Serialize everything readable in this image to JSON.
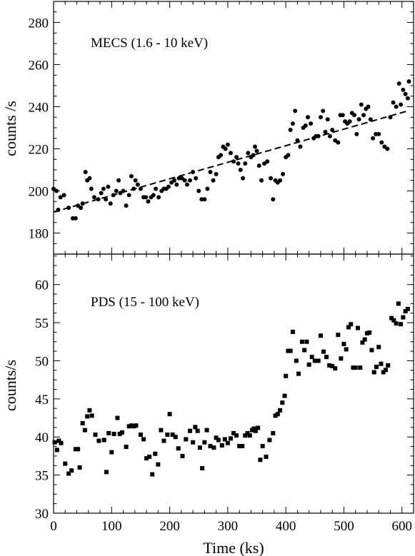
{
  "chart_data": [
    {
      "type": "scatter",
      "panel_label": "MECS (1.6 - 10 keV)",
      "xlabel": "",
      "ylabel": "counts /s",
      "xlim": [
        0,
        620
      ],
      "ylim": [
        170,
        290
      ],
      "x_ticks": [
        0,
        100,
        200,
        300,
        400,
        500,
        600
      ],
      "y_ticks": [
        180,
        200,
        220,
        240,
        260,
        280
      ],
      "y_tick_labels": [
        "180",
        "200",
        "220",
        "240",
        "260",
        "280"
      ],
      "marker": "circle",
      "series": [
        {
          "points": [
            [
              0,
              201
            ],
            [
              5,
              200
            ],
            [
              8,
              191
            ],
            [
              12,
              197
            ],
            [
              18,
              198
            ],
            [
              26,
              192
            ],
            [
              33,
              187
            ],
            [
              38,
              187
            ],
            [
              42,
              193
            ],
            [
              47,
              192
            ],
            [
              50,
              194
            ],
            [
              55,
              209
            ],
            [
              58,
              205
            ],
            [
              62,
              206
            ],
            [
              65,
              201
            ],
            [
              70,
              197
            ],
            [
              77,
              196
            ],
            [
              82,
              199
            ],
            [
              86,
              201
            ],
            [
              90,
              196
            ],
            [
              94,
              202
            ],
            [
              98,
              194
            ],
            [
              103,
              198
            ],
            [
              108,
              200
            ],
            [
              112,
              205
            ],
            [
              115,
              199
            ],
            [
              120,
              200
            ],
            [
              125,
              193
            ],
            [
              130,
              198
            ],
            [
              134,
              207
            ],
            [
              138,
              201
            ],
            [
              141,
              205
            ],
            [
              145,
              203
            ],
            [
              150,
              201
            ],
            [
              155,
              197
            ],
            [
              159,
              197
            ],
            [
              163,
              195
            ],
            [
              168,
              197
            ],
            [
              172,
              198
            ],
            [
              176,
              201
            ],
            [
              181,
              197
            ],
            [
              186,
              200
            ],
            [
              190,
              201
            ],
            [
              194,
              201
            ],
            [
              198,
              202
            ],
            [
              203,
              204
            ],
            [
              208,
              205
            ],
            [
              212,
              203
            ],
            [
              216,
              206
            ],
            [
              221,
              206
            ],
            [
              226,
              205
            ],
            [
              230,
              203
            ],
            [
              235,
              205
            ],
            [
              240,
              209
            ],
            [
              245,
              206
            ],
            [
              250,
              200
            ],
            [
              255,
              196
            ],
            [
              260,
              196
            ],
            [
              265,
              201
            ],
            [
              270,
              209
            ],
            [
              275,
              205
            ],
            [
              280,
              208
            ],
            [
              284,
              216
            ],
            [
              288,
              217
            ],
            [
              292,
              221
            ],
            [
              296,
              220
            ],
            [
              300,
              222
            ],
            [
              305,
              218
            ],
            [
              310,
              214
            ],
            [
              315,
              216
            ],
            [
              318,
              213
            ],
            [
              322,
              210
            ],
            [
              326,
              206
            ],
            [
              330,
              213
            ],
            [
              335,
              218
            ],
            [
              340,
              216
            ],
            [
              344,
              217
            ],
            [
              347,
              221
            ],
            [
              350,
              219
            ],
            [
              354,
              212
            ],
            [
              358,
              205
            ],
            [
              363,
              213
            ],
            [
              368,
              214
            ],
            [
              374,
              206
            ],
            [
              378,
              196
            ],
            [
              382,
              205
            ],
            [
              386,
              204
            ],
            [
              390,
              205
            ],
            [
              395,
              208
            ],
            [
              400,
              216
            ],
            [
              404,
              217
            ],
            [
              408,
              229
            ],
            [
              412,
              232
            ],
            [
              416,
              238
            ],
            [
              420,
              224
            ],
            [
              425,
              221
            ],
            [
              430,
              230
            ],
            [
              434,
              231
            ],
            [
              438,
              235
            ],
            [
              443,
              232
            ],
            [
              448,
              225
            ],
            [
              452,
              226
            ],
            [
              456,
              226
            ],
            [
              460,
              235
            ],
            [
              464,
              238
            ],
            [
              468,
              228
            ],
            [
              472,
              234
            ],
            [
              476,
              226
            ],
            [
              480,
              229
            ],
            [
              485,
              224
            ],
            [
              490,
              223
            ],
            [
              494,
              236
            ],
            [
              498,
              236
            ],
            [
              502,
              233
            ],
            [
              506,
              232
            ],
            [
              510,
              233
            ],
            [
              514,
              237
            ],
            [
              518,
              236
            ],
            [
              522,
              227
            ],
            [
              526,
              234
            ],
            [
              530,
              241
            ],
            [
              534,
              236
            ],
            [
              538,
              239
            ],
            [
              542,
              240
            ],
            [
              546,
              234
            ],
            [
              550,
              225
            ],
            [
              555,
              227
            ],
            [
              560,
              227
            ],
            [
              565,
              223
            ],
            [
              570,
              221
            ],
            [
              575,
              220
            ],
            [
              580,
              235
            ],
            [
              585,
              242
            ],
            [
              590,
              240
            ],
            [
              595,
              251
            ],
            [
              598,
              241
            ],
            [
              602,
              248
            ],
            [
              606,
              246
            ],
            [
              610,
              244
            ],
            [
              612,
              252
            ]
          ]
        }
      ],
      "fit_line": {
        "style": "dashed",
        "x": [
          0,
          610
        ],
        "y": [
          190,
          238
        ]
      }
    },
    {
      "type": "scatter",
      "panel_label": "PDS (15 - 100 keV)",
      "xlabel": "Time  (ks)",
      "ylabel": "counts/s",
      "xlim": [
        0,
        620
      ],
      "ylim": [
        30,
        64
      ],
      "x_ticks": [
        0,
        100,
        200,
        300,
        400,
        500,
        600
      ],
      "x_tick_labels": [
        "0",
        "100",
        "200",
        "300",
        "400",
        "500",
        "600"
      ],
      "y_ticks": [
        30,
        35,
        40,
        45,
        50,
        55,
        60
      ],
      "y_tick_labels": [
        "30",
        "35",
        "40",
        "45",
        "50",
        "55",
        "60"
      ],
      "marker": "square",
      "series": [
        {
          "points": [
            [
              2,
              39.3
            ],
            [
              6,
              38.3
            ],
            [
              9,
              39.5
            ],
            [
              13,
              39.2
            ],
            [
              20,
              36.5
            ],
            [
              26,
              35.2
            ],
            [
              31,
              35.6
            ],
            [
              38,
              38.4
            ],
            [
              42,
              38.4
            ],
            [
              45,
              36
            ],
            [
              50,
              41.8
            ],
            [
              54,
              40.9
            ],
            [
              58,
              42.7
            ],
            [
              62,
              43.5
            ],
            [
              66,
              42.8
            ],
            [
              72,
              40.3
            ],
            [
              78,
              39.5
            ],
            [
              87,
              39.6
            ],
            [
              91,
              35.4
            ],
            [
              95,
              40.5
            ],
            [
              100,
              38
            ],
            [
              104,
              40.4
            ],
            [
              110,
              42.5
            ],
            [
              114,
              40.4
            ],
            [
              118,
              40.6
            ],
            [
              125,
              38.7
            ],
            [
              130,
              41.4
            ],
            [
              134,
              41.5
            ],
            [
              138,
              41.4
            ],
            [
              142,
              41.5
            ],
            [
              150,
              40.3
            ],
            [
              155,
              39.7
            ],
            [
              160,
              37.2
            ],
            [
              165,
              37.4
            ],
            [
              170,
              35.1
            ],
            [
              175,
              37.8
            ],
            [
              180,
              36.4
            ],
            [
              185,
              40.9
            ],
            [
              190,
              39.5
            ],
            [
              196,
              40.3
            ],
            [
              200,
              43
            ],
            [
              205,
              40.3
            ],
            [
              210,
              40
            ],
            [
              215,
              38.5
            ],
            [
              222,
              37.5
            ],
            [
              228,
              39.7
            ],
            [
              235,
              40.8
            ],
            [
              240,
              39.3
            ],
            [
              244,
              41.3
            ],
            [
              248,
              40.8
            ],
            [
              252,
              38.6
            ],
            [
              256,
              35.9
            ],
            [
              260,
              39.3
            ],
            [
              264,
              40.9
            ],
            [
              270,
              38.8
            ],
            [
              276,
              38.6
            ],
            [
              280,
              39.9
            ],
            [
              284,
              39.6
            ],
            [
              290,
              38.9
            ],
            [
              295,
              39.7
            ],
            [
              300,
              39.2
            ],
            [
              305,
              39.8
            ],
            [
              310,
              40.5
            ],
            [
              315,
              40.2
            ],
            [
              320,
              38.8
            ],
            [
              325,
              38.8
            ],
            [
              330,
              40.2
            ],
            [
              334,
              40.5
            ],
            [
              338,
              40.2
            ],
            [
              342,
              40.9
            ],
            [
              345,
              41.1
            ],
            [
              348,
              40.8
            ],
            [
              352,
              41.2
            ],
            [
              356,
              37
            ],
            [
              360,
              38.8
            ],
            [
              366,
              37.4
            ],
            [
              372,
              39.6
            ],
            [
              378,
              40.5
            ],
            [
              382,
              42.8
            ],
            [
              386,
              43
            ],
            [
              390,
              43.5
            ],
            [
              394,
              44.5
            ],
            [
              398,
              45.4
            ],
            [
              400,
              48
            ],
            [
              404,
              51.3
            ],
            [
              408,
              51.3
            ],
            [
              412,
              53.8
            ],
            [
              418,
              50
            ],
            [
              422,
              48.3
            ],
            [
              428,
              52.5
            ],
            [
              432,
              51.4
            ],
            [
              436,
              52.5
            ],
            [
              440,
              49.5
            ],
            [
              445,
              50.5
            ],
            [
              450,
              50
            ],
            [
              456,
              50
            ],
            [
              460,
              53.3
            ],
            [
              465,
              51.2
            ],
            [
              470,
              50.5
            ],
            [
              475,
              49.4
            ],
            [
              480,
              49.3
            ],
            [
              485,
              49
            ],
            [
              490,
              53.4
            ],
            [
              495,
              50.3
            ],
            [
              500,
              52.2
            ],
            [
              504,
              51.5
            ],
            [
              508,
              54.4
            ],
            [
              512,
              54.8
            ],
            [
              516,
              49.1
            ],
            [
              520,
              49.1
            ],
            [
              524,
              54.3
            ],
            [
              528,
              49.1
            ],
            [
              532,
              52.4
            ],
            [
              536,
              52.8
            ],
            [
              540,
              53.6
            ],
            [
              544,
              53.7
            ],
            [
              548,
              51.4
            ],
            [
              552,
              48.5
            ],
            [
              556,
              49.2
            ],
            [
              560,
              51.8
            ],
            [
              564,
              49.6
            ],
            [
              568,
              48.5
            ],
            [
              572,
              48.8
            ],
            [
              576,
              49.4
            ],
            [
              582,
              55.6
            ],
            [
              586,
              55.3
            ],
            [
              590,
              54.9
            ],
            [
              594,
              57.5
            ],
            [
              598,
              54.8
            ],
            [
              602,
              55.7
            ],
            [
              606,
              56.5
            ],
            [
              610,
              56.8
            ]
          ]
        }
      ]
    }
  ]
}
